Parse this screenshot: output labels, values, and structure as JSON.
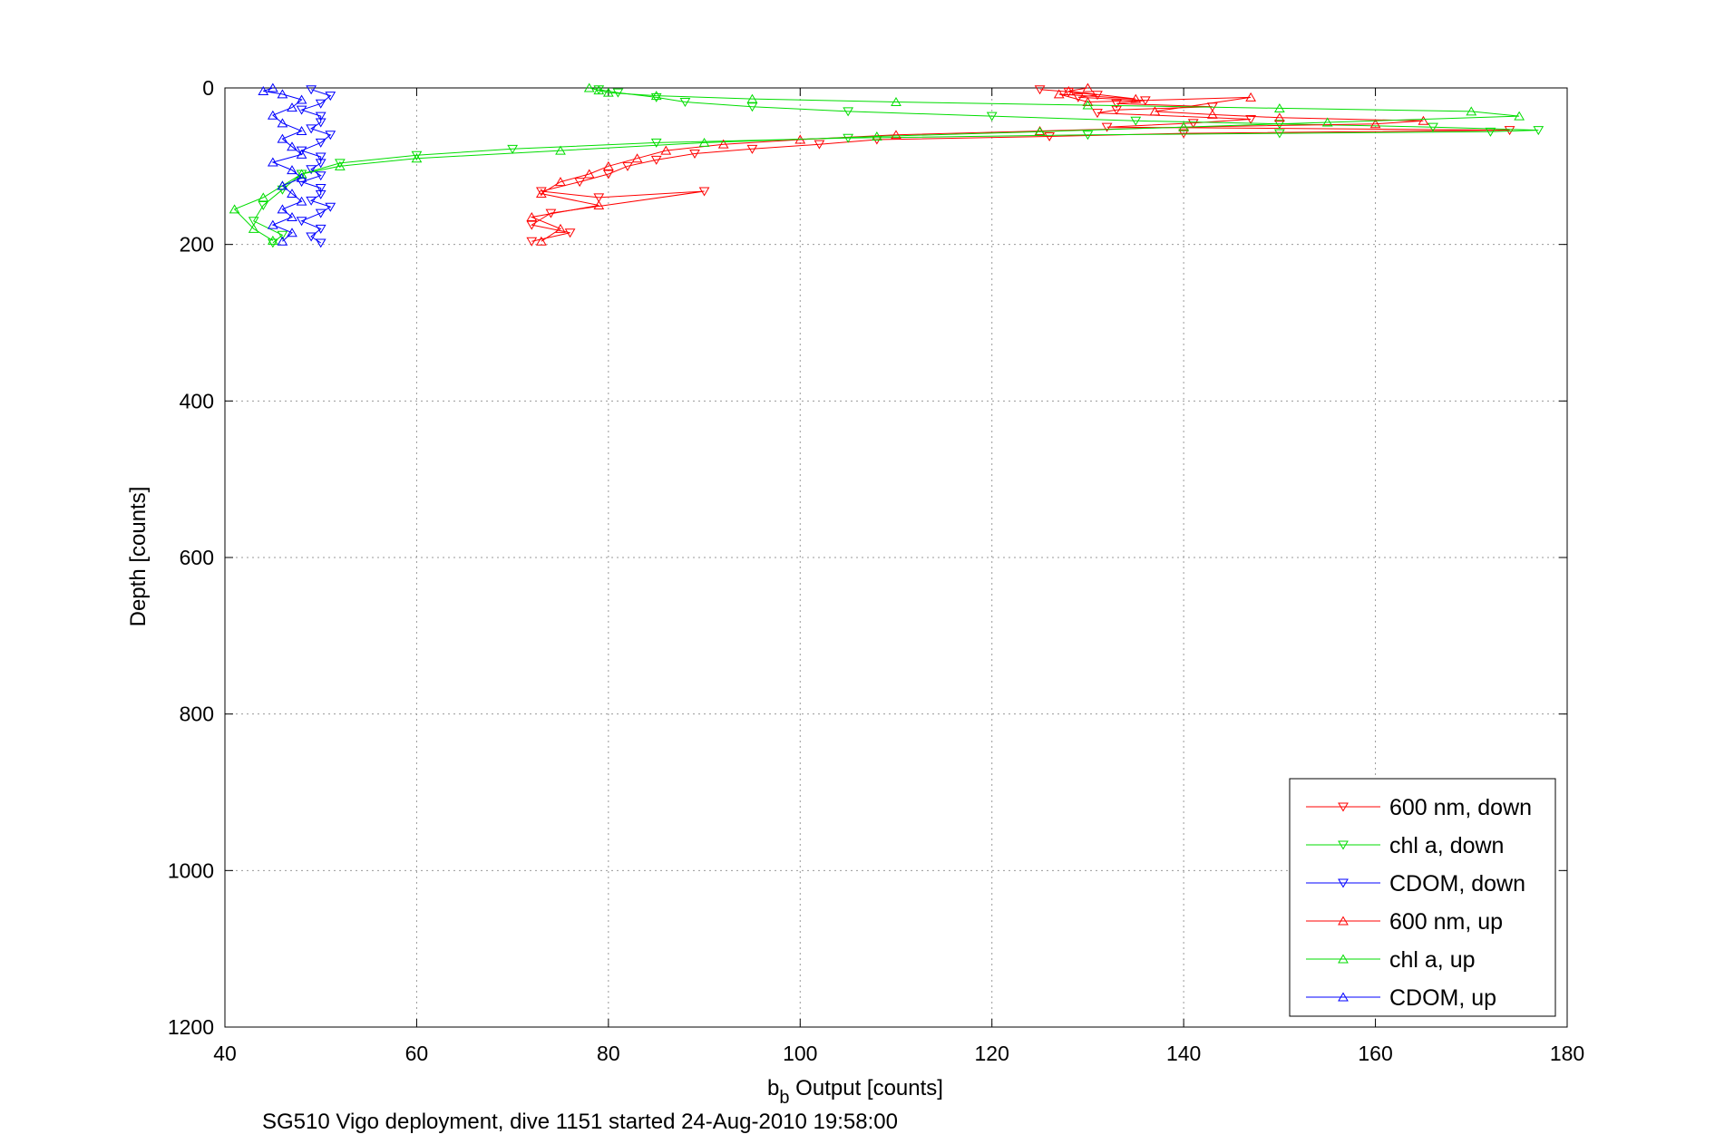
{
  "chart_data": {
    "type": "line",
    "title": "",
    "xlabel_main": "b",
    "xlabel_sub": "b",
    "xlabel_rest": " Output [counts]",
    "ylabel": "Depth [counts]",
    "caption": "SG510 Vigo deployment, dive 1151 started 24-Aug-2010 19:58:00",
    "xlim": [
      40,
      180
    ],
    "ylim": [
      0,
      1200
    ],
    "y_reversed": true,
    "grid": true,
    "legend_position": "bottom-right",
    "xticks": [
      "40",
      "60",
      "80",
      "100",
      "120",
      "140",
      "160",
      "180"
    ],
    "yticks": [
      "0",
      "200",
      "400",
      "600",
      "800",
      "1000",
      "1200"
    ],
    "series": [
      {
        "name": "600 nm, down",
        "color": "#ff0000",
        "marker": "triangle-down",
        "x": [
          125,
          128,
          131,
          129,
          136,
          133,
          143,
          133,
          131,
          147,
          141,
          132,
          174,
          140,
          126,
          108,
          102,
          95,
          89,
          85,
          82,
          80,
          77,
          73,
          79,
          90,
          74,
          72,
          76,
          72
        ],
        "y": [
          2,
          5,
          9,
          12,
          16,
          20,
          24,
          28,
          32,
          40,
          45,
          50,
          54,
          58,
          62,
          66,
          72,
          78,
          84,
          92,
          100,
          110,
          120,
          132,
          140,
          132,
          160,
          175,
          185,
          196
        ]
      },
      {
        "name": "chl a, down",
        "color": "#00dd00",
        "marker": "triangle-down",
        "x": [
          79,
          81,
          85,
          88,
          95,
          105,
          120,
          135,
          150,
          166,
          177,
          172,
          150,
          130,
          105,
          85,
          70,
          60,
          52,
          48,
          46,
          44,
          43,
          46,
          45
        ],
        "y": [
          2,
          6,
          12,
          18,
          24,
          30,
          36,
          42,
          46,
          50,
          54,
          56,
          58,
          60,
          64,
          70,
          78,
          86,
          96,
          110,
          130,
          150,
          170,
          188,
          198
        ]
      },
      {
        "name": "CDOM, down",
        "color": "#0000ff",
        "marker": "triangle-down",
        "x": [
          49,
          51,
          50,
          48,
          50,
          50,
          49,
          51,
          50,
          48,
          50,
          50,
          49,
          50,
          48,
          50,
          50,
          49,
          51,
          50,
          48,
          50,
          49,
          50
        ],
        "y": [
          2,
          10,
          20,
          28,
          36,
          44,
          52,
          60,
          70,
          80,
          88,
          96,
          104,
          112,
          120,
          128,
          136,
          144,
          152,
          160,
          170,
          180,
          190,
          198
        ]
      },
      {
        "name": "600 nm, up",
        "color": "#ff0000",
        "marker": "triangle-up",
        "x": [
          73,
          75,
          72,
          79,
          73,
          75,
          78,
          80,
          83,
          86,
          92,
          100,
          110,
          125,
          140,
          160,
          165,
          150,
          143,
          137,
          147,
          130,
          127,
          135,
          128,
          130
        ],
        "y": [
          196,
          180,
          165,
          150,
          135,
          120,
          110,
          100,
          90,
          80,
          72,
          66,
          60,
          55,
          50,
          46,
          42,
          38,
          34,
          30,
          12,
          18,
          8,
          14,
          4,
          0
        ]
      },
      {
        "name": "chl a, up",
        "color": "#00dd00",
        "marker": "triangle-up",
        "x": [
          45,
          43,
          41,
          44,
          46,
          48,
          52,
          60,
          75,
          90,
          108,
          125,
          140,
          155,
          175,
          170,
          150,
          130,
          110,
          95,
          85,
          80,
          79,
          78
        ],
        "y": [
          195,
          180,
          155,
          140,
          125,
          110,
          100,
          90,
          80,
          70,
          62,
          56,
          50,
          44,
          36,
          30,
          26,
          22,
          18,
          14,
          10,
          6,
          3,
          0
        ]
      },
      {
        "name": "CDOM, up",
        "color": "#0000ff",
        "marker": "triangle-up",
        "x": [
          46,
          47,
          45,
          47,
          46,
          48,
          47,
          46,
          48,
          47,
          45,
          48,
          47,
          46,
          48,
          46,
          45,
          47,
          48,
          46,
          44,
          45
        ],
        "y": [
          196,
          185,
          175,
          165,
          155,
          145,
          135,
          125,
          115,
          105,
          95,
          85,
          75,
          65,
          55,
          45,
          35,
          25,
          15,
          8,
          4,
          0
        ]
      }
    ]
  }
}
